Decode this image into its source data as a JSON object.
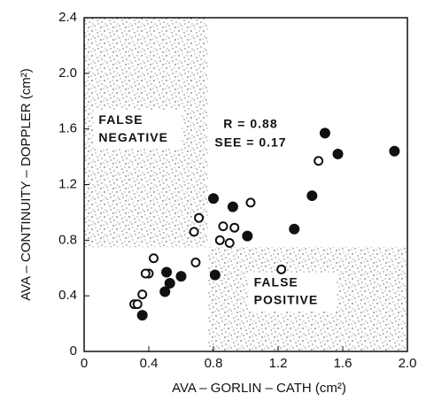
{
  "chart_data": {
    "type": "scatter",
    "xlabel": "AVA – GORLIN – CATH (cm²)",
    "ylabel": "AVA – CONTINUITY – DOPPLER (cm²)",
    "xlim": [
      0,
      2
    ],
    "ylim": [
      0,
      2.4
    ],
    "xticks": [
      0,
      0.4,
      0.8,
      1.2,
      1.6,
      {
        "value": 2,
        "label": "2.0"
      }
    ],
    "yticks": [
      0,
      0.4,
      0.8,
      1.2,
      1.6,
      {
        "value": 2,
        "label": "2.0"
      },
      2.4
    ],
    "annotations": [
      "R = 0.88",
      "SEE = 0.17"
    ],
    "regions": [
      {
        "xlim": [
          0,
          0.77
        ],
        "ylim": [
          0.75,
          2.4
        ],
        "label": [
          "FALSE",
          "NEGATIVE"
        ]
      },
      {
        "xlim": [
          0.77,
          2
        ],
        "ylim": [
          0,
          0.75
        ],
        "label": [
          "FALSE",
          "POSITIVE"
        ]
      }
    ],
    "series": [
      {
        "color": "#111111",
        "marker": "filled",
        "x": [
          1.49,
          1.57,
          1.41,
          1.92,
          1.3,
          0.8,
          0.92,
          1.01,
          0.81,
          0.6,
          0.51,
          0.53,
          0.5,
          0.36
        ],
        "values": [
          1.57,
          1.42,
          1.12,
          1.44,
          0.88,
          1.1,
          1.04,
          0.83,
          0.55,
          0.54,
          0.57,
          0.49,
          0.43,
          0.26
        ]
      },
      {
        "color": "#111111",
        "marker": "open",
        "x": [
          1.45,
          1.03,
          0.93,
          0.86,
          0.71,
          0.68,
          0.84,
          0.9,
          0.69,
          1.22,
          0.43,
          0.4,
          0.38,
          0.36,
          0.31,
          0.33
        ],
        "values": [
          1.37,
          1.07,
          0.89,
          0.9,
          0.96,
          0.86,
          0.8,
          0.78,
          0.64,
          0.59,
          0.67,
          0.56,
          0.56,
          0.41,
          0.34,
          0.34
        ]
      }
    ]
  }
}
